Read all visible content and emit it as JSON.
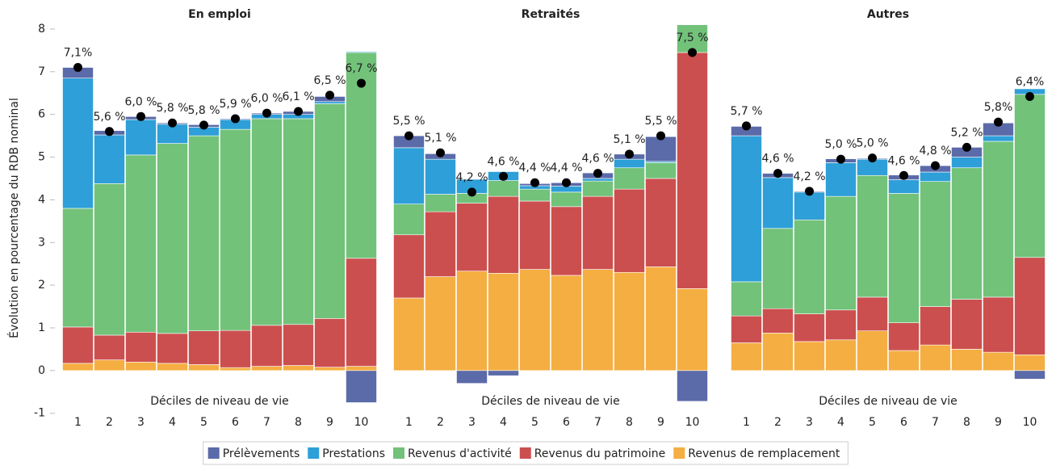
{
  "chart_data": [
    {
      "type": "bar",
      "stacked": true,
      "title": "En emploi",
      "x_label": "Déciles de niveau de vie",
      "y_label": "Évolution en pourcentage du RDB nominal",
      "categories": [
        "1",
        "2",
        "3",
        "4",
        "5",
        "6",
        "7",
        "8",
        "9",
        "10"
      ],
      "ylim": [
        -1.1,
        8.15
      ],
      "yticks": [
        -1,
        0,
        1,
        2,
        3,
        4,
        5,
        6,
        7,
        8
      ],
      "series": [
        {
          "name": "Revenus de remplacement",
          "color": "#f5ae42",
          "values": [
            0.17,
            0.25,
            0.2,
            0.17,
            0.14,
            0.07,
            0.1,
            0.12,
            0.08,
            0.1
          ]
        },
        {
          "name": "Revenus du patrimoine",
          "color": "#cc4f4f",
          "values": [
            0.85,
            0.58,
            0.7,
            0.7,
            0.79,
            0.87,
            0.96,
            0.96,
            1.14,
            2.53
          ]
        },
        {
          "name": "Revenus d'activité",
          "color": "#72c27a",
          "values": [
            2.78,
            3.55,
            4.15,
            4.45,
            4.57,
            4.71,
            4.84,
            4.82,
            5.03,
            4.82
          ]
        },
        {
          "name": "Prestations",
          "color": "#2e9fd8",
          "values": [
            3.05,
            1.14,
            0.83,
            0.45,
            0.2,
            0.23,
            0.1,
            0.1,
            0.05,
            0.02
          ]
        },
        {
          "name": "Prélèvements",
          "color": "#5b6aa8",
          "values": [
            0.25,
            0.1,
            0.07,
            0.03,
            0.06,
            0.02,
            0.03,
            0.07,
            0.12,
            -0.75
          ]
        }
      ],
      "totals": {
        "values": [
          7.1,
          5.6,
          5.95,
          5.8,
          5.75,
          5.9,
          6.03,
          6.07,
          6.45,
          6.73
        ],
        "value_labels": [
          "7,1%",
          "5,6 %",
          "6,0 %",
          "5,8 %",
          "5,8 %",
          "5,9 %",
          "6,0 %",
          "6,1 %",
          "6,5 %",
          "6,7 %"
        ]
      }
    },
    {
      "type": "bar",
      "stacked": true,
      "title": "Retraités",
      "x_label": "Déciles de niveau de vie",
      "categories": [
        "1",
        "2",
        "3",
        "4",
        "5",
        "6",
        "7",
        "8",
        "9",
        "10"
      ],
      "ylim": [
        -1.1,
        8.15
      ],
      "series": [
        {
          "color": "#f5ae42",
          "values": [
            1.7,
            2.2,
            2.33,
            2.28,
            2.37,
            2.23,
            2.37,
            2.3,
            2.43,
            1.92
          ]
        },
        {
          "color": "#cc4f4f",
          "values": [
            1.48,
            1.52,
            1.59,
            1.8,
            1.6,
            1.61,
            1.71,
            1.95,
            2.07,
            5.53
          ]
        },
        {
          "color": "#72c27a",
          "values": [
            0.72,
            0.41,
            0.23,
            0.37,
            0.28,
            0.34,
            0.36,
            0.5,
            0.37,
            0.65
          ]
        },
        {
          "color": "#2e9fd8",
          "values": [
            1.32,
            0.82,
            0.33,
            0.21,
            0.08,
            0.14,
            0.06,
            0.2,
            0.03,
            0
          ]
        },
        {
          "color": "#5b6aa8",
          "values": [
            0.28,
            0.13,
            -0.3,
            -0.12,
            0.05,
            0.08,
            0.13,
            0.12,
            0.58,
            -0.72
          ]
        }
      ],
      "totals": {
        "values": [
          5.5,
          5.1,
          4.18,
          4.55,
          4.4,
          4.4,
          4.62,
          5.07,
          5.5,
          7.45
        ],
        "value_labels": [
          "5,5 %",
          "5,1 %",
          "4,2 %",
          "4,6 %",
          "4,4 %",
          "4,4 %",
          "4,6 %",
          "5,1 %",
          "5,5 %",
          "7,5 %"
        ]
      }
    },
    {
      "type": "bar",
      "stacked": true,
      "title": "Autres",
      "x_label": "Déciles de niveau de vie",
      "categories": [
        "1",
        "2",
        "3",
        "4",
        "5",
        "6",
        "7",
        "8",
        "9",
        "10"
      ],
      "ylim": [
        -1.1,
        8.15
      ],
      "series": [
        {
          "color": "#f5ae42",
          "values": [
            0.65,
            0.88,
            0.68,
            0.72,
            0.93,
            0.47,
            0.6,
            0.5,
            0.43,
            0.37
          ]
        },
        {
          "color": "#cc4f4f",
          "values": [
            0.63,
            0.57,
            0.65,
            0.7,
            0.79,
            0.65,
            0.9,
            1.17,
            1.29,
            2.28
          ]
        },
        {
          "color": "#72c27a",
          "values": [
            0.8,
            1.88,
            2.2,
            2.66,
            2.85,
            3.03,
            2.93,
            3.08,
            3.65,
            3.82
          ]
        },
        {
          "color": "#2e9fd8",
          "values": [
            3.42,
            1.19,
            0.65,
            0.79,
            0.38,
            0.32,
            0.22,
            0.25,
            0.13,
            0.13
          ]
        },
        {
          "color": "#5b6aa8",
          "values": [
            0.22,
            0.1,
            0.02,
            0.09,
            0.02,
            0.11,
            0.15,
            0.23,
            0.3,
            -0.2
          ]
        }
      ],
      "totals": {
        "values": [
          5.73,
          4.62,
          4.2,
          4.95,
          4.98,
          4.57,
          4.8,
          5.23,
          5.82,
          6.42
        ],
        "value_labels": [
          "5,7 %",
          "4,6 %",
          "4,2 %",
          "5,0 %",
          "5,0 %",
          "4,6 %",
          "4,8 %",
          "5,2 %",
          "5,8%",
          "6,4%"
        ]
      }
    }
  ]
}
